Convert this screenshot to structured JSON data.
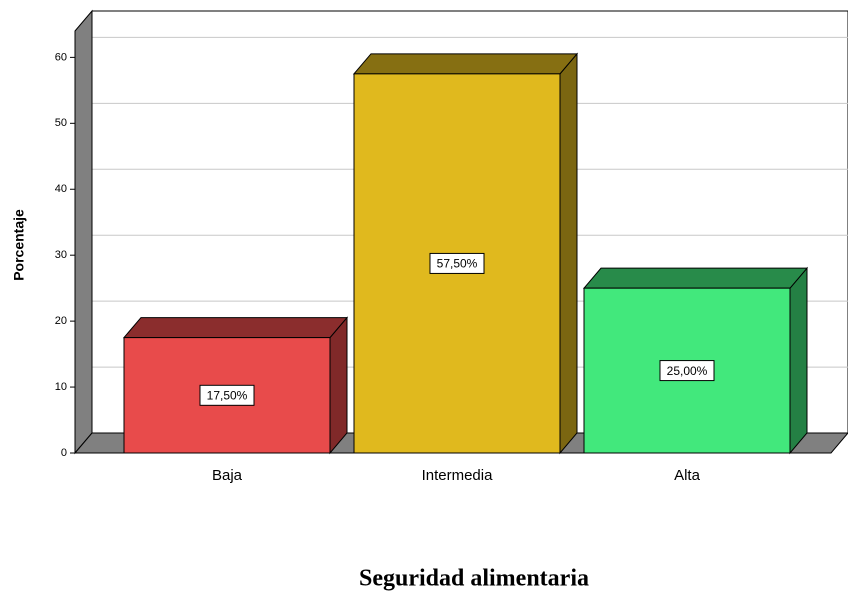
{
  "chart_data": {
    "type": "bar3d",
    "title": "Seguridad alimentaria",
    "y_label": "Porcentaje",
    "categories": [
      "Baja",
      "Intermedia",
      "Alta"
    ],
    "values": [
      17.5,
      57.5,
      25
    ],
    "value_labels": [
      "17,50%",
      "57,50%",
      "25,00%"
    ],
    "colors": [
      "#e84b4b",
      "#e0b91e",
      "#42e87c"
    ],
    "ylim": [
      0,
      64
    ],
    "yticks": [
      0,
      10,
      20,
      30,
      40,
      50,
      60
    ],
    "grid": true
  }
}
